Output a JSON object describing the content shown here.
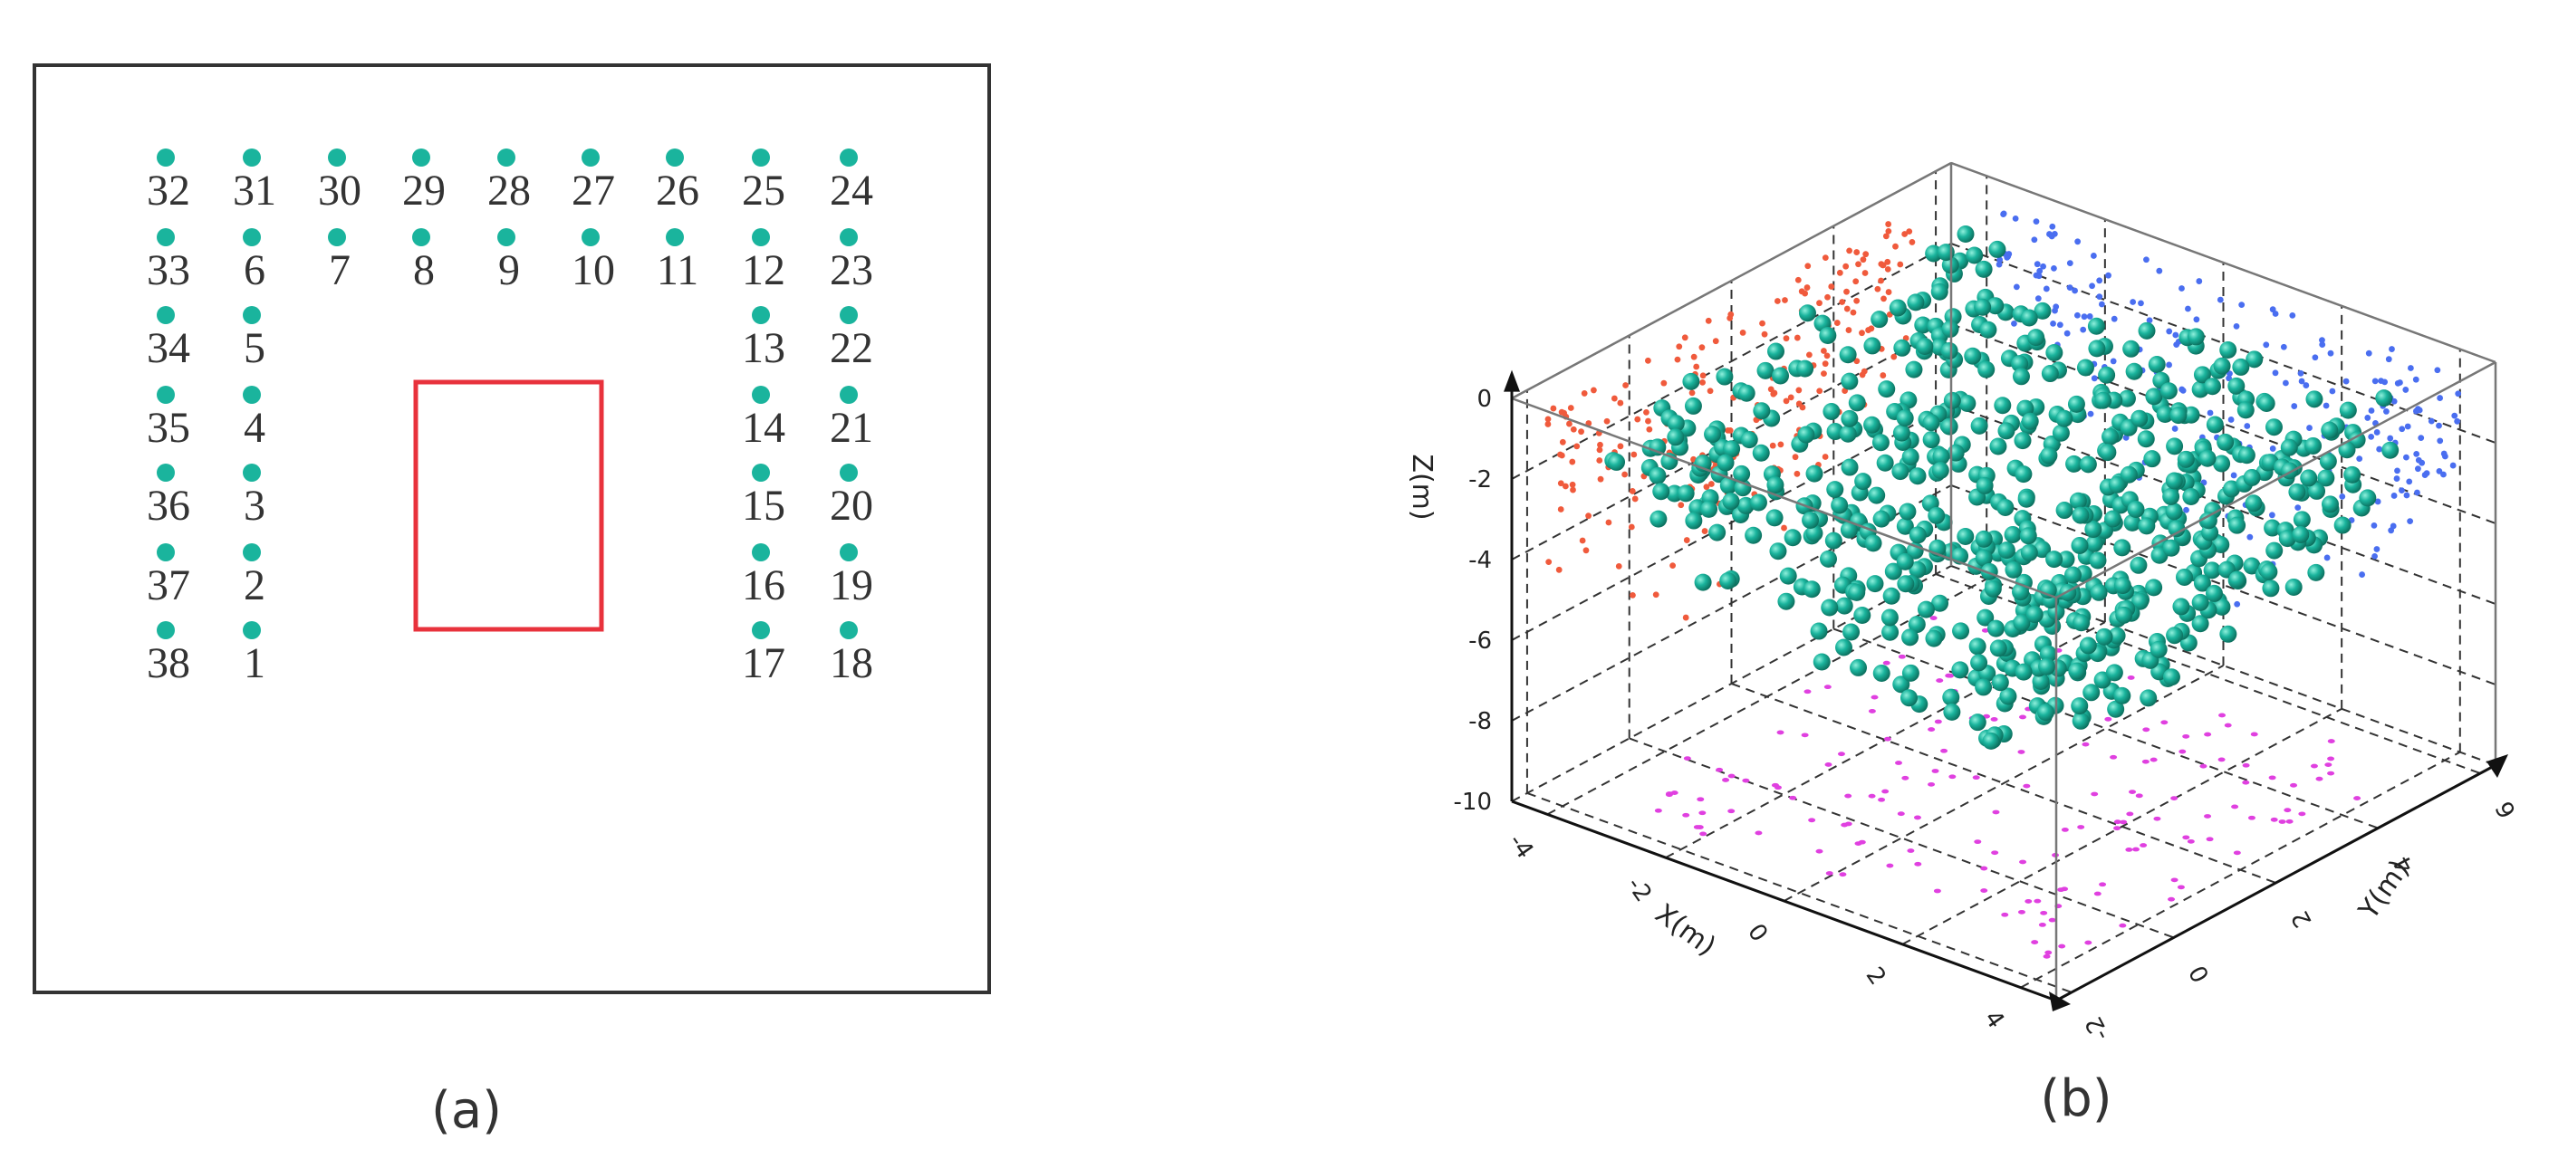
{
  "panel_a": {
    "caption": "(a)",
    "dot_color": "#1ab49d",
    "rect_color": "#e8323c",
    "points": [
      {
        "label": "32",
        "col": 0,
        "row": 0
      },
      {
        "label": "31",
        "col": 1,
        "row": 0
      },
      {
        "label": "30",
        "col": 2,
        "row": 0
      },
      {
        "label": "29",
        "col": 3,
        "row": 0
      },
      {
        "label": "28",
        "col": 4,
        "row": 0
      },
      {
        "label": "27",
        "col": 5,
        "row": 0
      },
      {
        "label": "26",
        "col": 6,
        "row": 0
      },
      {
        "label": "25",
        "col": 7,
        "row": 0
      },
      {
        "label": "24",
        "col": 8,
        "row": 0
      },
      {
        "label": "33",
        "col": 0,
        "row": 1
      },
      {
        "label": "6",
        "col": 1,
        "row": 1
      },
      {
        "label": "7",
        "col": 2,
        "row": 1
      },
      {
        "label": "8",
        "col": 3,
        "row": 1
      },
      {
        "label": "9",
        "col": 4,
        "row": 1
      },
      {
        "label": "10",
        "col": 5,
        "row": 1
      },
      {
        "label": "11",
        "col": 6,
        "row": 1
      },
      {
        "label": "12",
        "col": 7,
        "row": 1
      },
      {
        "label": "23",
        "col": 8,
        "row": 1
      },
      {
        "label": "34",
        "col": 0,
        "row": 2
      },
      {
        "label": "5",
        "col": 1,
        "row": 2
      },
      {
        "label": "13",
        "col": 7,
        "row": 2
      },
      {
        "label": "22",
        "col": 8,
        "row": 2
      },
      {
        "label": "35",
        "col": 0,
        "row": 3
      },
      {
        "label": "4",
        "col": 1,
        "row": 3
      },
      {
        "label": "14",
        "col": 7,
        "row": 3
      },
      {
        "label": "21",
        "col": 8,
        "row": 3
      },
      {
        "label": "36",
        "col": 0,
        "row": 4
      },
      {
        "label": "3",
        "col": 1,
        "row": 4
      },
      {
        "label": "15",
        "col": 7,
        "row": 4
      },
      {
        "label": "20",
        "col": 8,
        "row": 4
      },
      {
        "label": "37",
        "col": 0,
        "row": 5
      },
      {
        "label": "2",
        "col": 1,
        "row": 5
      },
      {
        "label": "16",
        "col": 7,
        "row": 5
      },
      {
        "label": "19",
        "col": 8,
        "row": 5
      },
      {
        "label": "38",
        "col": 0,
        "row": 6
      },
      {
        "label": "1",
        "col": 1,
        "row": 6
      },
      {
        "label": "17",
        "col": 7,
        "row": 6
      },
      {
        "label": "18",
        "col": 8,
        "row": 6
      }
    ]
  },
  "panel_b": {
    "caption": "(b)",
    "colors": {
      "cloud": "#1ab49d",
      "xz_projection": "#f05a3c",
      "yz_projection": "#4a6ef0",
      "xy_projection": "#e040e0"
    },
    "x_axis": {
      "label": "X(m)",
      "ticks": [
        "-4",
        "-2",
        "0",
        "2",
        "4"
      ]
    },
    "y_axis": {
      "label": "Y(m)",
      "ticks": [
        "-2",
        "0",
        "2",
        "4",
        "6"
      ]
    },
    "z_axis": {
      "label": "Z(m)",
      "ticks": [
        "0",
        "-2",
        "-4",
        "-6",
        "-8",
        "-10"
      ]
    }
  }
}
